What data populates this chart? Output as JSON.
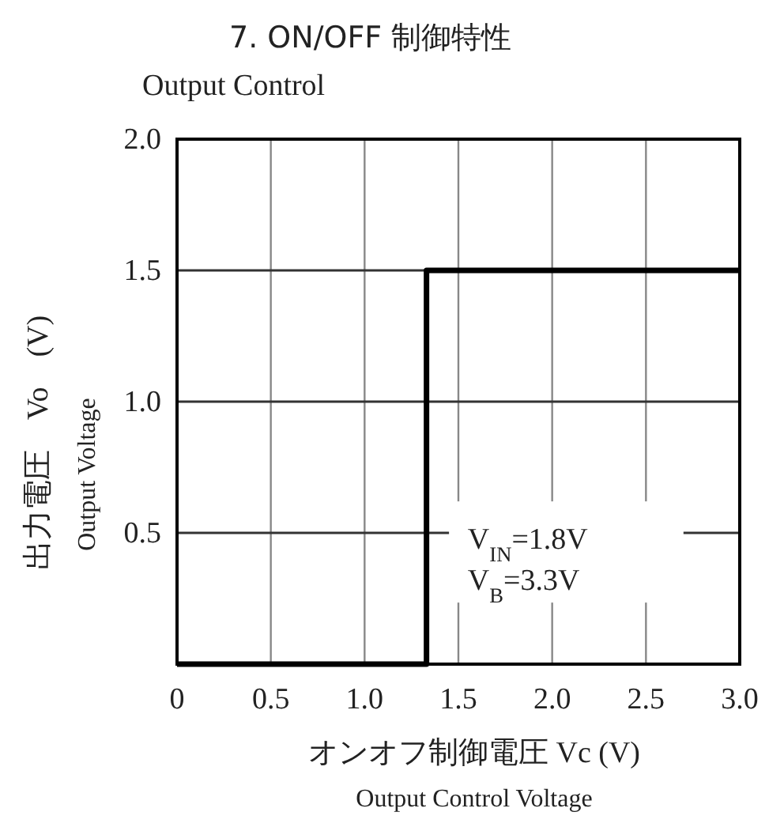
{
  "chart_data": {
    "type": "step",
    "title": "7. ON/OFF 制御特性",
    "subtitle": "Output Control",
    "xlabel": "オンオフ制御電圧 Vc (V)\nOutput Control Voltage",
    "ylabel": "出力電圧　Vo　(V)\nOutput Voltage",
    "x": [
      0,
      1.33,
      3.0
    ],
    "series": [
      {
        "color": "#000000",
        "values": [
          0,
          1.5,
          1.5
        ]
      }
    ],
    "xlim": [
      0,
      3.0
    ],
    "ylim": [
      0,
      2.0
    ],
    "xticks": [
      0,
      {
        "value": 0.5,
        "label": "0.5"
      },
      {
        "value": 1,
        "label": "1.0"
      },
      {
        "value": 1.5,
        "label": "1.5"
      },
      {
        "value": 2,
        "label": "2.0"
      },
      {
        "value": 2.5,
        "label": "2.5"
      },
      {
        "value": 3,
        "label": "3.0"
      }
    ],
    "yticks": [
      {
        "value": 0,
        "label": null
      },
      {
        "value": 0.5,
        "label": "0.5"
      },
      {
        "value": 1,
        "label": "1.0"
      },
      {
        "value": 1.5,
        "label": "1.5"
      },
      {
        "value": 2,
        "label": "2.0"
      }
    ],
    "grid": true,
    "annotations": [
      "V$_{IN}$=1.8V",
      "V$_{B}$=3.3V"
    ]
  }
}
